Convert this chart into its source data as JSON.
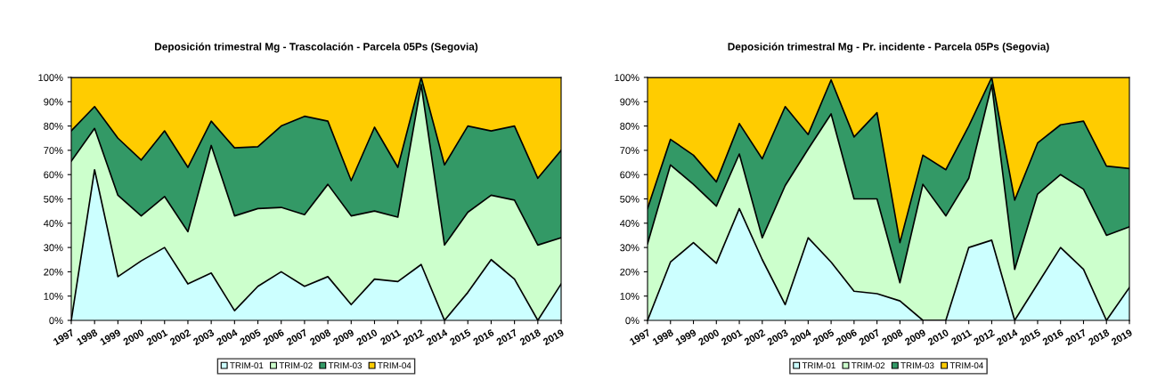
{
  "chart_data": [
    {
      "type": "area",
      "stacked": true,
      "title": "Deposición trimestral Mg - Trascolación - Parcela 05Ps (Segovia)",
      "categories": [
        "1997",
        "1998",
        "1999",
        "2000",
        "2001",
        "2002",
        "2003",
        "2004",
        "2005",
        "2006",
        "2007",
        "2008",
        "2009",
        "2010",
        "2011",
        "2012",
        "2014",
        "2015",
        "2016",
        "2017",
        "2018",
        "2019"
      ],
      "series": [
        {
          "name": "TRIM-01",
          "color": "#ccffff",
          "values": [
            0,
            62,
            18,
            24.5,
            30,
            15,
            19.5,
            4,
            14,
            20,
            14,
            18,
            6.5,
            17,
            16,
            23,
            0,
            11.5,
            25,
            17,
            0,
            15
          ]
        },
        {
          "name": "TRIM-02",
          "color": "#ccffcc",
          "values": [
            65.5,
            17,
            33.5,
            18.5,
            21,
            21.5,
            52.5,
            39,
            32,
            26.5,
            29.5,
            38,
            36.5,
            28,
            26.5,
            74,
            31,
            33,
            26.5,
            32.5,
            31,
            19
          ]
        },
        {
          "name": "TRIM-03",
          "color": "#339966",
          "values": [
            12.5,
            9,
            23.5,
            23,
            27,
            26.5,
            10,
            28,
            25.5,
            33.5,
            40.5,
            26,
            14.5,
            34.5,
            20.5,
            3,
            33,
            35.5,
            26.5,
            30.5,
            27.5,
            36
          ]
        },
        {
          "name": "TRIM-04",
          "color": "#ffcc00",
          "values": [
            22,
            12,
            25,
            34,
            22,
            37,
            18,
            29,
            28.5,
            20,
            16,
            18,
            42.5,
            20.5,
            37,
            0,
            36,
            20,
            22,
            20,
            41.5,
            30
          ]
        }
      ],
      "ylim": [
        0,
        100
      ],
      "yticks": [
        {
          "value": 0,
          "label": "0%"
        },
        {
          "value": 10,
          "label": "10%"
        },
        {
          "value": 20,
          "label": "20%"
        },
        {
          "value": 30,
          "label": "30%"
        },
        {
          "value": 40,
          "label": "40%"
        },
        {
          "value": 50,
          "label": "50%"
        },
        {
          "value": 60,
          "label": "60%"
        },
        {
          "value": 70,
          "label": "70%"
        },
        {
          "value": 80,
          "label": "80%"
        },
        {
          "value": 90,
          "label": "90%"
        },
        {
          "value": 100,
          "label": "100%"
        }
      ],
      "grid": false,
      "legend": "bottom"
    },
    {
      "type": "area",
      "stacked": true,
      "title": "Deposición trimestral Mg - Pr. incidente - Parcela 05Ps (Segovia)",
      "categories": [
        "1997",
        "1998",
        "1999",
        "2000",
        "2001",
        "2002",
        "2003",
        "2004",
        "2005",
        "2006",
        "2007",
        "2008",
        "2009",
        "2010",
        "2011",
        "2012",
        "2014",
        "2015",
        "2016",
        "2017",
        "2018",
        "2019"
      ],
      "series": [
        {
          "name": "TRIM-01",
          "color": "#ccffff",
          "values": [
            0,
            24,
            32,
            23.5,
            46,
            25,
            6.5,
            34,
            24,
            12,
            11,
            8,
            0,
            0,
            30,
            33,
            0,
            15,
            30,
            21,
            0,
            13.5
          ]
        },
        {
          "name": "TRIM-02",
          "color": "#ccffcc",
          "values": [
            31.5,
            40,
            24,
            23.5,
            22.5,
            9,
            49,
            36.5,
            61,
            38,
            39,
            7.5,
            56,
            43,
            28.5,
            64,
            21,
            37,
            30,
            33,
            35,
            25
          ]
        },
        {
          "name": "TRIM-03",
          "color": "#339966",
          "values": [
            14.5,
            10.5,
            12,
            10,
            12.5,
            32.5,
            32.5,
            6,
            14,
            25.5,
            35.5,
            16.5,
            12,
            19,
            21.5,
            3,
            28.5,
            21,
            20.5,
            28,
            28.5,
            24
          ]
        },
        {
          "name": "TRIM-04",
          "color": "#ffcc00",
          "values": [
            54,
            25.5,
            32,
            43,
            19,
            33.5,
            12,
            23.5,
            1,
            24.5,
            14.5,
            68,
            32,
            38,
            20,
            0,
            50.5,
            27,
            19.5,
            18,
            36.5,
            37.5
          ]
        }
      ],
      "ylim": [
        0,
        100
      ],
      "yticks": [
        {
          "value": 0,
          "label": "0%"
        },
        {
          "value": 10,
          "label": "10%"
        },
        {
          "value": 20,
          "label": "20%"
        },
        {
          "value": 30,
          "label": "30%"
        },
        {
          "value": 40,
          "label": "40%"
        },
        {
          "value": 50,
          "label": "50%"
        },
        {
          "value": 60,
          "label": "60%"
        },
        {
          "value": 70,
          "label": "70%"
        },
        {
          "value": 80,
          "label": "80%"
        },
        {
          "value": 90,
          "label": "90%"
        },
        {
          "value": 100,
          "label": "100%"
        }
      ],
      "grid": false,
      "legend": "bottom"
    }
  ]
}
